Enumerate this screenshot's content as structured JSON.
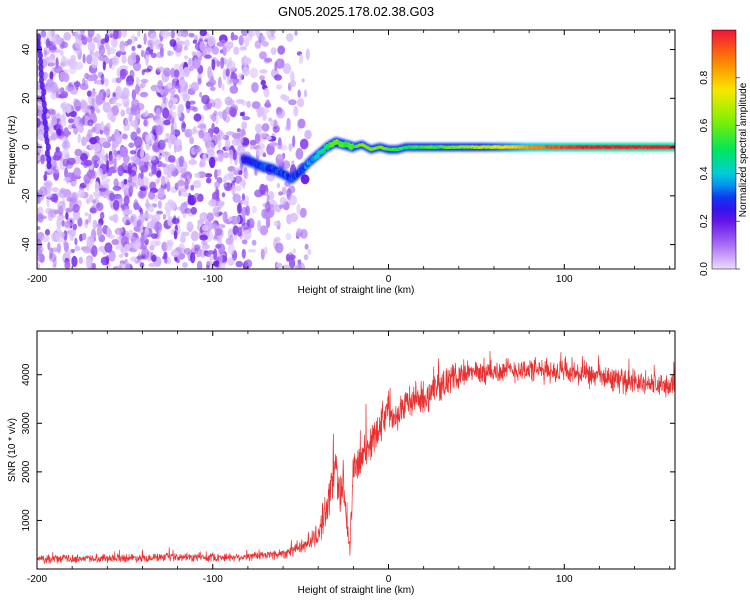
{
  "title": "GN05.2025.178.02.38.G03",
  "colors": {
    "snr_line": "#e83030",
    "axes": "#000000",
    "background": "#ffffff"
  },
  "chart_data": [
    {
      "type": "heatmap",
      "xlabel": "Height of straight line (km)",
      "ylabel": "Frequency (Hz)",
      "xlim": [
        -200,
        163
      ],
      "ylim": [
        -50,
        48
      ],
      "xticks": [
        -200,
        -100,
        0,
        100
      ],
      "yticks": [
        -40,
        -20,
        0,
        20,
        40
      ],
      "grid": false,
      "colormap": "rainbow",
      "colorbar": {
        "label": "Normalized spectral amplitude",
        "range": [
          0,
          1
        ],
        "ticks": [
          "0.0",
          "0.2",
          "0.4",
          "0.6",
          "0.8"
        ]
      },
      "ridge": {
        "description": "dominant frequency track",
        "x": [
          -83,
          -78,
          -72,
          -66,
          -60,
          -55,
          -50,
          -45,
          -40,
          -35,
          -30,
          -25,
          -20,
          -15,
          -10,
          -5,
          0,
          5,
          10,
          20,
          30,
          40,
          60,
          80,
          100,
          120,
          140,
          163
        ],
        "freq": [
          -5,
          -6,
          -8,
          -9,
          -11,
          -13,
          -10,
          -6,
          -3,
          0,
          2,
          1,
          0,
          1,
          -1,
          0,
          -1,
          -1,
          0,
          0,
          0,
          0,
          0,
          0,
          0,
          0,
          0,
          0
        ],
        "amplitude": [
          0.25,
          0.25,
          0.3,
          0.3,
          0.3,
          0.3,
          0.3,
          0.35,
          0.4,
          0.5,
          0.6,
          0.55,
          0.55,
          0.6,
          0.6,
          0.6,
          0.55,
          0.55,
          0.5,
          0.55,
          0.55,
          0.6,
          0.7,
          0.85,
          0.95,
          1.0,
          1.0,
          1.0
        ]
      },
      "noise_region": {
        "x_range": [
          -200,
          -45
        ],
        "amplitude_range": [
          0.02,
          0.2
        ]
      }
    },
    {
      "type": "line",
      "xlabel": "Height of straight line (km)",
      "ylabel": "SNR (10 * v/v)",
      "xlim": [
        -200,
        163
      ],
      "ylim": [
        0,
        4900
      ],
      "xticks": [
        -200,
        -100,
        0,
        100
      ],
      "yticks": [
        1000,
        2000,
        3000,
        4000
      ],
      "grid": false,
      "series": [
        {
          "x": [
            -200,
            -150,
            -100,
            -80,
            -60,
            -50,
            -40,
            -35,
            -32,
            -30,
            -28,
            -26,
            -24,
            -22,
            -20,
            -15,
            -10,
            -5,
            0,
            5,
            10,
            15,
            20,
            30,
            40,
            50,
            60,
            70,
            80,
            100,
            110,
            120,
            130,
            140,
            150,
            163
          ],
          "y": [
            200,
            230,
            240,
            250,
            320,
            450,
            700,
            1300,
            1800,
            2100,
            1500,
            1900,
            1200,
            400,
            2000,
            2300,
            2600,
            3000,
            3300,
            3200,
            3400,
            3500,
            3500,
            3800,
            4000,
            4050,
            4050,
            4100,
            4100,
            4050,
            4000,
            3950,
            3900,
            3850,
            3800,
            3750
          ],
          "noise_amplitude": [
            90,
            90,
            90,
            90,
            120,
            150,
            250,
            400,
            500,
            500,
            500,
            500,
            500,
            400,
            400,
            400,
            400,
            400,
            400,
            350,
            350,
            350,
            350,
            300,
            280,
            260,
            260,
            260,
            260,
            260,
            260,
            260,
            260,
            260,
            260,
            260
          ]
        }
      ]
    }
  ]
}
